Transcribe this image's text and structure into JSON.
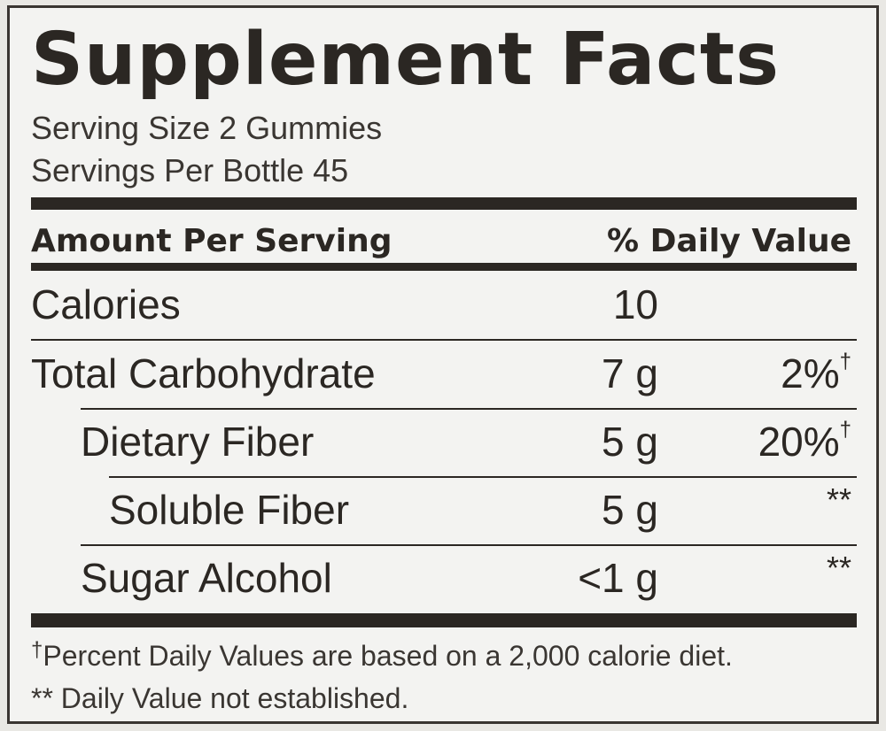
{
  "title": "Supplement Facts",
  "serving_size": "Serving Size 2 Gummies",
  "servings_per": "Servings Per Bottle 45",
  "header": {
    "left": "Amount Per Serving",
    "right": "% Daily Value"
  },
  "rows": [
    {
      "name": "Calories",
      "amount": "10"
    },
    {
      "name": "Total Carbohydrate",
      "amount": "7 g",
      "dv": "2%",
      "dv_mark": "†"
    },
    {
      "name": "Dietary Fiber",
      "amount": "5 g",
      "dv": "20%",
      "dv_mark": "†"
    },
    {
      "name": "Soluble Fiber",
      "amount": "5 g",
      "dv": "**"
    },
    {
      "name": "Sugar Alcohol",
      "amount": "<1 g",
      "dv": "**"
    }
  ],
  "footnotes": [
    {
      "mark": "†",
      "text": "Percent Daily Values are based on a 2,000 calorie diet."
    },
    {
      "text": "** Daily Value not established."
    }
  ]
}
